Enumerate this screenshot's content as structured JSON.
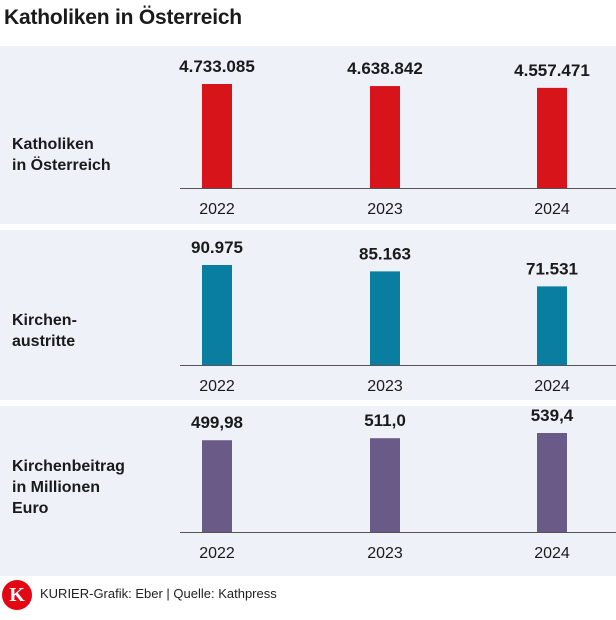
{
  "title": "Katholiken in Österreich",
  "footer": {
    "logo_letter": "K",
    "credit": "KURIER-Grafik: Eber | Quelle: Kathpress"
  },
  "colors": {
    "panel_bg": "#eef1f8",
    "axis": "#555555"
  },
  "chart_data": [
    {
      "type": "bar",
      "label": "Katholiken\nin Österreich",
      "categories": [
        "2022",
        "2023",
        "2024"
      ],
      "values": [
        4733085,
        4638842,
        4557471
      ],
      "value_labels": [
        "4.733.085",
        "4.638.842",
        "4.557.471"
      ],
      "color": "#d7141a",
      "ylim": [
        0,
        4733085
      ]
    },
    {
      "type": "bar",
      "label": "Kirchen-\naustritte",
      "categories": [
        "2022",
        "2023",
        "2024"
      ],
      "values": [
        90975,
        85163,
        71531
      ],
      "value_labels": [
        "90.975",
        "85.163",
        "71.531"
      ],
      "color": "#0a7ea0",
      "ylim": [
        0,
        90975
      ]
    },
    {
      "type": "bar",
      "label": "Kirchenbeitrag\nin Millionen\nEuro",
      "categories": [
        "2022",
        "2023",
        "2024"
      ],
      "values": [
        499.98,
        511.0,
        539.4
      ],
      "value_labels": [
        "499,98",
        "511,0",
        "539,4"
      ],
      "color": "#6a5a88",
      "ylim": [
        0,
        539.4
      ]
    }
  ]
}
